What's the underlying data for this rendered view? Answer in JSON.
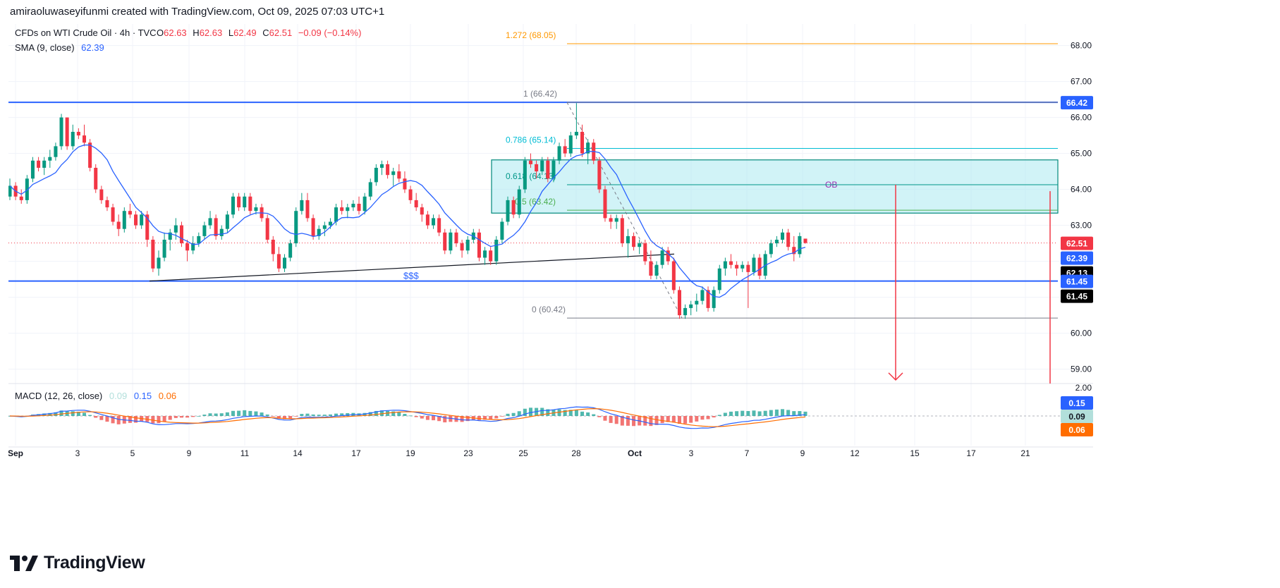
{
  "header": {
    "credit": "amiraoluwaseyifunmi created with TradingView.com, Oct 09, 2025 07:03 UTC+1"
  },
  "legend": {
    "symbol": "CFDs on WTI Crude Oil · 4h · TVC",
    "o_label": "O",
    "o_value": "62.63",
    "h_label": "H",
    "h_value": "62.63",
    "l_label": "L",
    "l_value": "62.49",
    "c_label": "C",
    "c_value": "62.51",
    "change": "−0.09 (−0.14%)",
    "sma_label": "SMA (9, close)",
    "sma_value": "62.39",
    "macd_label": "MACD (12, 26, close)",
    "macd_hist": "0.09",
    "macd_line": "0.15",
    "macd_signal": "0.06"
  },
  "footer": {
    "brand": "TradingView"
  },
  "colors": {
    "up": "#089981",
    "down": "#f23645",
    "sma": "#2962ff",
    "level": "#2962ff",
    "ob_fill": "#b2ebf2",
    "ob_border": "#00897b",
    "fib_786": "#00bcd4",
    "fib_618": "#009688",
    "fib_5": "#4caf50",
    "fib_1272": "#ff9800",
    "fib_base": "#787b86",
    "macd_line": "#2962ff",
    "macd_signal": "#ff6d00",
    "arrow": "#f23645",
    "ob_text": "#9c27b0"
  },
  "chart_data": {
    "type": "candlestick",
    "instrument": "CFDs on WTI Crude Oil",
    "timeframe": "4h",
    "y_axis": {
      "ticks": [
        59.0,
        60.0,
        61.0,
        62.0,
        63.0,
        64.0,
        65.0,
        66.0,
        67.0,
        68.0
      ],
      "tick_labels": [
        "59.00",
        "60.00",
        "61.00",
        "62.00",
        "63.00",
        "64.00",
        "65.00",
        "66.00",
        "67.00",
        "68.00"
      ],
      "range": [
        58.6,
        68.6
      ]
    },
    "x_axis": {
      "tick_labels": [
        "Sep",
        "3",
        "5",
        "9",
        "11",
        "14",
        "17",
        "19",
        "23",
        "25",
        "28",
        "Oct",
        "3",
        "7",
        "9",
        "12",
        "15",
        "17",
        "21"
      ],
      "bold_labels": [
        "Sep",
        "Oct"
      ]
    },
    "price_labels": [
      {
        "text": "66.42",
        "value": 66.42,
        "bg": "#2962ff"
      },
      {
        "text": "62.51",
        "value": 62.51,
        "bg": "#f23645"
      },
      {
        "text": "62.39",
        "value": 62.39,
        "bg": "#2962ff"
      },
      {
        "text": "62.13",
        "value": 62.13,
        "bg": "#000000"
      },
      {
        "text": "61.45",
        "value": 61.45,
        "bg": "#2962ff"
      },
      {
        "text": "61.45",
        "value": 61.45,
        "bg": "#000000"
      }
    ],
    "last_price": 62.51,
    "horizontal_levels": [
      66.42,
      61.45
    ],
    "level_label": "$$$",
    "fibonacci": [
      {
        "label": "1.272 (68.05)",
        "value": 68.05
      },
      {
        "label": "1 (66.42)",
        "value": 66.42
      },
      {
        "label": "0.786 (65.14)",
        "value": 65.14
      },
      {
        "label": "0.618 (64.13)",
        "value": 64.13
      },
      {
        "label": "0.5 (63.42)",
        "value": 63.42
      },
      {
        "label": "0 (60.42)",
        "value": 60.42
      }
    ],
    "order_block": {
      "label": "OB",
      "top": 64.82,
      "bottom": 63.34
    },
    "trendline": {
      "from": 61.45,
      "to": 62.2
    },
    "candles": [
      [
        63.8,
        64.3,
        63.7,
        64.1
      ],
      [
        64.1,
        64.2,
        63.7,
        63.8
      ],
      [
        63.8,
        64.0,
        63.6,
        63.7
      ],
      [
        63.7,
        64.4,
        63.6,
        64.3
      ],
      [
        64.3,
        64.9,
        64.2,
        64.8
      ],
      [
        64.8,
        64.9,
        64.5,
        64.6
      ],
      [
        64.6,
        64.9,
        64.4,
        64.8
      ],
      [
        64.8,
        65.1,
        64.6,
        64.9
      ],
      [
        64.9,
        65.3,
        64.8,
        65.2
      ],
      [
        65.2,
        66.1,
        65.1,
        66.0
      ],
      [
        66.0,
        66.0,
        65.1,
        65.2
      ],
      [
        65.2,
        65.8,
        65.1,
        65.6
      ],
      [
        65.6,
        65.7,
        65.4,
        65.5
      ],
      [
        65.5,
        65.8,
        65.2,
        65.3
      ],
      [
        65.3,
        65.4,
        64.5,
        64.6
      ],
      [
        64.6,
        64.7,
        63.9,
        64.0
      ],
      [
        64.0,
        64.1,
        63.6,
        63.7
      ],
      [
        63.7,
        63.8,
        63.4,
        63.5
      ],
      [
        63.5,
        63.6,
        63.0,
        63.1
      ],
      [
        63.1,
        63.3,
        62.7,
        62.9
      ],
      [
        62.9,
        63.5,
        62.8,
        63.4
      ],
      [
        63.4,
        63.6,
        63.2,
        63.3
      ],
      [
        63.3,
        63.4,
        62.9,
        63.0
      ],
      [
        63.0,
        63.4,
        62.9,
        63.3
      ],
      [
        63.3,
        63.4,
        62.4,
        62.6
      ],
      [
        62.6,
        62.7,
        61.7,
        61.8
      ],
      [
        61.8,
        62.3,
        61.6,
        62.1
      ],
      [
        62.1,
        62.8,
        62.0,
        62.6
      ],
      [
        62.6,
        62.9,
        62.3,
        62.8
      ],
      [
        62.8,
        63.2,
        62.6,
        63.0
      ],
      [
        63.0,
        63.1,
        62.4,
        62.5
      ],
      [
        62.5,
        62.6,
        62.0,
        62.3
      ],
      [
        62.3,
        62.7,
        62.2,
        62.5
      ],
      [
        62.5,
        62.8,
        62.4,
        62.7
      ],
      [
        62.7,
        63.1,
        62.6,
        63.0
      ],
      [
        63.0,
        63.4,
        62.9,
        63.2
      ],
      [
        63.2,
        63.3,
        62.6,
        62.7
      ],
      [
        62.7,
        63.0,
        62.6,
        62.9
      ],
      [
        62.9,
        63.4,
        62.8,
        63.3
      ],
      [
        63.3,
        63.9,
        63.2,
        63.8
      ],
      [
        63.8,
        63.9,
        63.4,
        63.5
      ],
      [
        63.5,
        63.9,
        63.4,
        63.8
      ],
      [
        63.8,
        63.9,
        63.3,
        63.4
      ],
      [
        63.4,
        63.6,
        63.3,
        63.5
      ],
      [
        63.5,
        63.6,
        63.1,
        63.2
      ],
      [
        63.2,
        63.3,
        62.5,
        62.6
      ],
      [
        62.6,
        62.7,
        62.0,
        62.2
      ],
      [
        62.2,
        62.4,
        61.7,
        61.8
      ],
      [
        61.8,
        62.2,
        61.7,
        62.1
      ],
      [
        62.1,
        62.6,
        62.0,
        62.5
      ],
      [
        62.5,
        63.5,
        62.4,
        63.4
      ],
      [
        63.4,
        63.9,
        63.3,
        63.7
      ],
      [
        63.7,
        63.9,
        63.1,
        63.2
      ],
      [
        63.2,
        63.3,
        62.6,
        62.7
      ],
      [
        62.7,
        63.0,
        62.6,
        62.9
      ],
      [
        62.9,
        63.1,
        62.7,
        63.0
      ],
      [
        63.0,
        63.2,
        62.9,
        63.1
      ],
      [
        63.1,
        63.6,
        63.0,
        63.5
      ],
      [
        63.5,
        63.7,
        63.3,
        63.4
      ],
      [
        63.4,
        63.6,
        63.2,
        63.5
      ],
      [
        63.5,
        63.7,
        63.4,
        63.6
      ],
      [
        63.6,
        63.8,
        63.3,
        63.4
      ],
      [
        63.4,
        63.9,
        63.3,
        63.8
      ],
      [
        63.8,
        64.3,
        63.7,
        64.2
      ],
      [
        64.2,
        64.7,
        64.1,
        64.6
      ],
      [
        64.6,
        64.8,
        64.4,
        64.7
      ],
      [
        64.7,
        64.8,
        64.3,
        64.4
      ],
      [
        64.4,
        64.6,
        64.1,
        64.5
      ],
      [
        64.5,
        64.7,
        64.2,
        64.3
      ],
      [
        64.3,
        64.5,
        63.9,
        64.0
      ],
      [
        64.0,
        64.1,
        63.6,
        63.7
      ],
      [
        63.7,
        63.9,
        63.4,
        63.5
      ],
      [
        63.5,
        63.6,
        63.1,
        63.3
      ],
      [
        63.3,
        63.4,
        62.9,
        63.0
      ],
      [
        63.0,
        63.3,
        62.9,
        63.2
      ],
      [
        63.2,
        63.3,
        62.7,
        62.8
      ],
      [
        62.8,
        62.9,
        62.2,
        62.3
      ],
      [
        62.3,
        62.9,
        62.2,
        62.8
      ],
      [
        62.8,
        62.9,
        62.4,
        62.5
      ],
      [
        62.5,
        62.6,
        62.1,
        62.3
      ],
      [
        62.3,
        62.7,
        62.2,
        62.6
      ],
      [
        62.6,
        62.9,
        62.5,
        62.8
      ],
      [
        62.8,
        62.9,
        62.0,
        62.1
      ],
      [
        62.1,
        62.4,
        61.9,
        62.3
      ],
      [
        62.3,
        62.4,
        61.9,
        62.0
      ],
      [
        62.0,
        62.7,
        61.9,
        62.6
      ],
      [
        62.6,
        63.2,
        62.5,
        63.1
      ],
      [
        63.1,
        63.8,
        63.0,
        63.7
      ],
      [
        63.7,
        63.8,
        63.2,
        63.3
      ],
      [
        63.3,
        64.1,
        63.2,
        64.0
      ],
      [
        64.0,
        64.9,
        63.9,
        64.8
      ],
      [
        64.8,
        65.0,
        64.6,
        64.7
      ],
      [
        64.7,
        64.8,
        64.3,
        64.5
      ],
      [
        64.5,
        64.9,
        64.4,
        64.8
      ],
      [
        64.8,
        64.9,
        64.2,
        64.3
      ],
      [
        64.3,
        64.9,
        64.2,
        64.8
      ],
      [
        64.8,
        65.3,
        64.7,
        65.2
      ],
      [
        65.2,
        65.4,
        64.9,
        65.0
      ],
      [
        65.0,
        65.6,
        64.9,
        65.5
      ],
      [
        65.5,
        66.4,
        65.4,
        65.6
      ],
      [
        65.6,
        65.8,
        64.9,
        65.0
      ],
      [
        65.0,
        65.4,
        64.7,
        65.3
      ],
      [
        65.3,
        65.4,
        64.7,
        64.8
      ],
      [
        64.8,
        64.9,
        63.9,
        64.0
      ],
      [
        64.0,
        64.1,
        63.1,
        63.2
      ],
      [
        63.2,
        63.3,
        62.9,
        63.1
      ],
      [
        63.1,
        63.3,
        62.9,
        63.2
      ],
      [
        63.2,
        63.3,
        62.4,
        62.5
      ],
      [
        62.5,
        62.9,
        62.1,
        62.7
      ],
      [
        62.7,
        62.8,
        62.3,
        62.4
      ],
      [
        62.4,
        62.6,
        62.2,
        62.5
      ],
      [
        62.5,
        62.6,
        61.9,
        62.0
      ],
      [
        62.0,
        62.3,
        61.5,
        61.6
      ],
      [
        61.6,
        62.0,
        61.5,
        61.9
      ],
      [
        61.9,
        62.4,
        61.8,
        62.3
      ],
      [
        62.3,
        62.4,
        61.9,
        62.0
      ],
      [
        62.0,
        62.1,
        61.1,
        61.2
      ],
      [
        61.2,
        61.3,
        60.4,
        60.5
      ],
      [
        60.5,
        60.8,
        60.4,
        60.7
      ],
      [
        60.7,
        60.9,
        60.5,
        60.8
      ],
      [
        60.8,
        61.1,
        60.6,
        60.9
      ],
      [
        60.9,
        61.3,
        60.8,
        61.2
      ],
      [
        61.2,
        61.3,
        60.6,
        60.7
      ],
      [
        60.7,
        61.3,
        60.6,
        61.2
      ],
      [
        61.2,
        61.9,
        61.1,
        61.8
      ],
      [
        61.8,
        62.1,
        61.6,
        62.0
      ],
      [
        62.0,
        62.2,
        61.8,
        61.9
      ],
      [
        61.9,
        62.0,
        61.6,
        61.8
      ],
      [
        61.8,
        62.0,
        61.7,
        61.9
      ],
      [
        61.9,
        62.0,
        60.7,
        61.7
      ],
      [
        61.7,
        62.2,
        61.6,
        62.1
      ],
      [
        62.1,
        62.2,
        61.5,
        61.6
      ],
      [
        61.6,
        62.3,
        61.5,
        62.2
      ],
      [
        62.2,
        62.6,
        62.1,
        62.5
      ],
      [
        62.5,
        62.7,
        62.4,
        62.6
      ],
      [
        62.6,
        62.9,
        62.5,
        62.8
      ],
      [
        62.8,
        62.9,
        62.3,
        62.4
      ],
      [
        62.4,
        62.7,
        62.0,
        62.2
      ],
      [
        62.2,
        62.8,
        62.1,
        62.7
      ],
      [
        62.63,
        62.63,
        62.49,
        62.51
      ]
    ],
    "macd": {
      "hist": 0.09,
      "macd": 0.15,
      "signal": 0.06,
      "axis_ticks": [
        "2.00"
      ]
    }
  }
}
